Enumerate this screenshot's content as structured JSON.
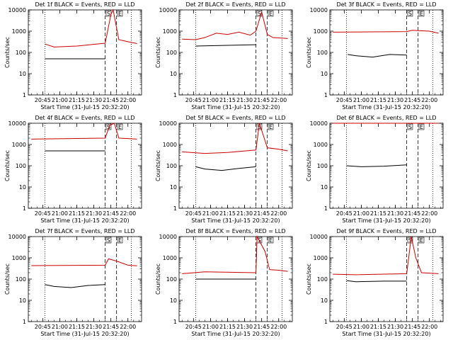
{
  "x_title": "Start Time (31-Jul-15 20:32:20)",
  "y_title": "Counts/sec",
  "x_ticks": [
    "20:45",
    "21:00",
    "21:15",
    "21:30",
    "21:45",
    "22:00"
  ],
  "y_ticks": [
    "1",
    "10",
    "100",
    "1000",
    "10000"
  ],
  "colors": {
    "events": "#000000",
    "lld": "#cc0000"
  },
  "chart_data": [
    {
      "type": "line",
      "title": "Det 1f BLACK = Events, RED = LLD",
      "yscale": "log",
      "ylim": [
        1,
        10000
      ],
      "xlim": [
        "20:32:20",
        "22:12:00"
      ],
      "markers": [
        "S",
        "E"
      ],
      "series": [
        {
          "name": "BLACK = Events",
          "x": [
            "20:47",
            "21:40"
          ],
          "values": [
            50,
            50
          ]
        },
        {
          "name": "RED = LLD",
          "x": [
            "20:47",
            "20:55",
            "21:15",
            "21:40",
            "21:45",
            "21:47",
            "21:52",
            "22:00",
            "22:08"
          ],
          "values": [
            250,
            180,
            200,
            270,
            6000,
            10000,
            400,
            320,
            260
          ]
        }
      ]
    },
    {
      "type": "line",
      "title": "Det 2f BLACK = Events, RED = LLD",
      "yscale": "log",
      "ylim": [
        1,
        10000
      ],
      "xlim": [
        "20:32:20",
        "22:12:00"
      ],
      "markers": [
        "S",
        "E"
      ],
      "series": [
        {
          "name": "BLACK = Events",
          "x": [
            "20:47",
            "21:40"
          ],
          "values": [
            200,
            230
          ]
        },
        {
          "name": "RED = LLD",
          "x": [
            "20:35",
            "20:47",
            "20:55",
            "21:05",
            "21:15",
            "21:25",
            "21:35",
            "21:40",
            "21:45",
            "21:50",
            "21:55",
            "22:08"
          ],
          "values": [
            420,
            400,
            500,
            800,
            700,
            900,
            650,
            1000,
            8000,
            700,
            500,
            450
          ]
        }
      ]
    },
    {
      "type": "line",
      "title": "Det 3f BLACK = Events, RED = LLD",
      "yscale": "log",
      "ylim": [
        1,
        10000
      ],
      "xlim": [
        "20:32:20",
        "22:12:00"
      ],
      "markers": [
        "S",
        "E"
      ],
      "series": [
        {
          "name": "BLACK = Events",
          "x": [
            "20:48",
            "20:55",
            "21:10",
            "21:25",
            "21:40"
          ],
          "values": [
            80,
            70,
            60,
            80,
            75
          ]
        },
        {
          "name": "RED = LLD",
          "x": [
            "20:35",
            "21:40",
            "21:45",
            "22:00",
            "22:08"
          ],
          "values": [
            900,
            950,
            1100,
            1000,
            800
          ]
        }
      ]
    },
    {
      "type": "line",
      "title": "Det 4f BLACK = Events, RED = LLD",
      "yscale": "log",
      "ylim": [
        1,
        10000
      ],
      "xlim": [
        "20:32:20",
        "22:12:00"
      ],
      "markers": [
        "S",
        "E"
      ],
      "series": [
        {
          "name": "BLACK = Events",
          "x": [
            "20:47",
            "21:40"
          ],
          "values": [
            500,
            500
          ]
        },
        {
          "name": "RED = LLD",
          "x": [
            "20:35",
            "21:40",
            "21:44",
            "21:48",
            "21:52",
            "22:00",
            "22:08"
          ],
          "values": [
            1800,
            2000,
            8000,
            10000,
            2000,
            1900,
            1800
          ]
        }
      ]
    },
    {
      "type": "line",
      "title": "Det 5f BLACK = Events, RED = LLD",
      "yscale": "log",
      "ylim": [
        1,
        10000
      ],
      "xlim": [
        "20:32:20",
        "22:12:00"
      ],
      "markers": [
        "S",
        "E"
      ],
      "series": [
        {
          "name": "BLACK = Events",
          "x": [
            "20:47",
            "20:55",
            "21:10",
            "21:25",
            "21:40"
          ],
          "values": [
            90,
            70,
            60,
            75,
            90
          ]
        },
        {
          "name": "RED = LLD",
          "x": [
            "20:35",
            "20:55",
            "21:15",
            "21:40",
            "21:43",
            "21:50",
            "22:00",
            "22:08"
          ],
          "values": [
            450,
            380,
            420,
            550,
            10000,
            700,
            600,
            500
          ]
        }
      ]
    },
    {
      "type": "line",
      "title": "Det 6f BLACK = Events, RED = LLD",
      "yscale": "log",
      "ylim": [
        1,
        10000
      ],
      "xlim": [
        "20:32:20",
        "22:12:00"
      ],
      "markers": [
        "S",
        "E"
      ],
      "series": [
        {
          "name": "BLACK = Events",
          "x": [
            "20:47",
            "21:00",
            "21:20",
            "21:40"
          ],
          "values": [
            100,
            90,
            95,
            110
          ]
        },
        {
          "name": "RED = LLD",
          "x": [
            "20:35",
            "22:08"
          ],
          "values": [
            10000,
            10000
          ]
        }
      ]
    },
    {
      "type": "line",
      "title": "Det 7f BLACK = Events, RED = LLD",
      "yscale": "log",
      "ylim": [
        1,
        10000
      ],
      "xlim": [
        "20:32:20",
        "22:12:00"
      ],
      "markers": [
        "S",
        "E"
      ],
      "series": [
        {
          "name": "BLACK = Events",
          "x": [
            "20:47",
            "20:55",
            "21:10",
            "21:25",
            "21:40"
          ],
          "values": [
            55,
            45,
            40,
            50,
            55
          ]
        },
        {
          "name": "RED = LLD",
          "x": [
            "20:35",
            "21:40",
            "21:43",
            "21:50",
            "22:00",
            "22:08"
          ],
          "values": [
            430,
            450,
            900,
            700,
            450,
            420
          ]
        }
      ]
    },
    {
      "type": "line",
      "title": "Det 8f BLACK = Events, RED = LLD",
      "yscale": "log",
      "ylim": [
        1,
        10000
      ],
      "xlim": [
        "20:32:20",
        "22:12:00"
      ],
      "markers": [
        "S",
        "E"
      ],
      "series": [
        {
          "name": "BLACK = Events",
          "x": [
            "20:47",
            "21:40"
          ],
          "values": [
            100,
            100
          ]
        },
        {
          "name": "RED = LLD",
          "x": [
            "20:35",
            "20:55",
            "21:40",
            "21:41",
            "21:48",
            "21:52",
            "22:00",
            "22:08"
          ],
          "values": [
            180,
            220,
            200,
            10000,
            2000,
            280,
            260,
            230
          ]
        }
      ]
    },
    {
      "type": "line",
      "title": "Det 9f BLACK = Events, RED = LLD",
      "yscale": "log",
      "ylim": [
        1,
        10000
      ],
      "xlim": [
        "20:32:20",
        "22:12:00"
      ],
      "markers": [
        "S",
        "E"
      ],
      "series": [
        {
          "name": "BLACK = Events",
          "x": [
            "20:47",
            "20:55",
            "21:20",
            "21:40"
          ],
          "values": [
            85,
            75,
            80,
            80
          ]
        },
        {
          "name": "RED = LLD",
          "x": [
            "20:35",
            "20:55",
            "21:40",
            "21:44",
            "21:48",
            "21:53",
            "22:08"
          ],
          "values": [
            170,
            160,
            180,
            10000,
            1000,
            200,
            180
          ]
        }
      ]
    }
  ]
}
